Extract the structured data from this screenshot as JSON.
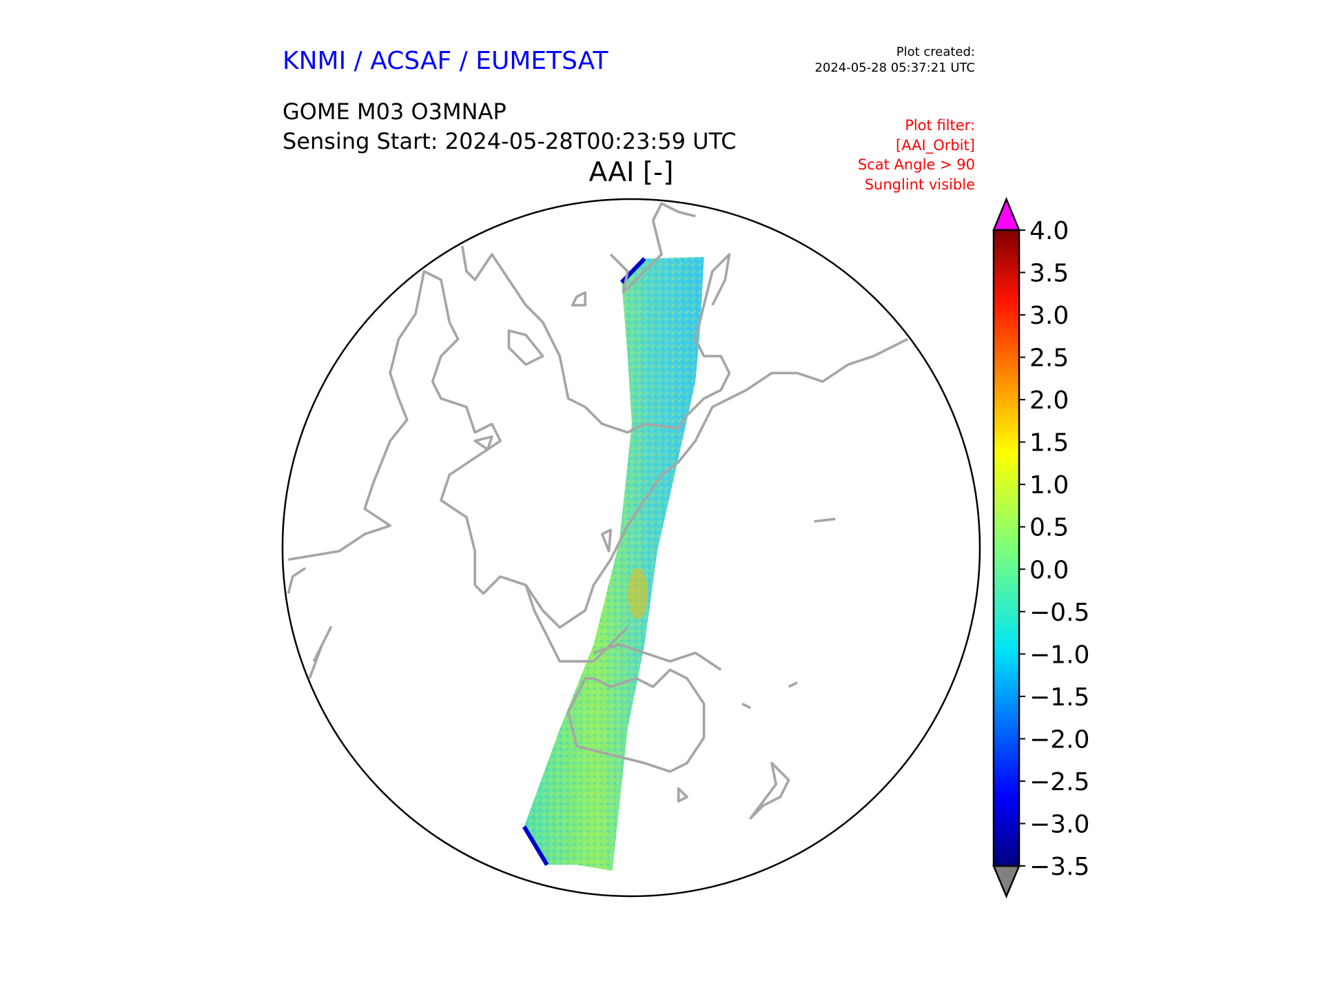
{
  "header": {
    "organisation": "KNMI / ACSAF / EUMETSAT",
    "plot_created_label": "Plot created:",
    "plot_created_value": "2024-05-28 05:37:21 UTC",
    "product": "GOME M03 O3MNAP",
    "sensing_start": "Sensing Start: 2024-05-28T00:23:59 UTC",
    "variable": "AAI [-]",
    "filter_lines": [
      "Plot filter:",
      "[AAI_Orbit]",
      "Scat Angle > 90",
      "Sunglint visible"
    ]
  },
  "colors": {
    "org": "#0000ff",
    "filter": "#ff0000",
    "coast": "#a6a6a6",
    "over": "#ff00ff",
    "under": "#808080"
  },
  "colorbar": {
    "min": -3.5,
    "max": 4.0,
    "colormap": "jet",
    "extend": "both",
    "tick_labels": [
      "4.0",
      "3.5",
      "3.0",
      "2.5",
      "2.0",
      "1.5",
      "1.0",
      "0.5",
      "0.0",
      "−0.5",
      "−1.0",
      "−1.5",
      "−2.0",
      "−2.5",
      "−3.0",
      "−3.5"
    ],
    "ticks": [
      4.0,
      3.5,
      3.0,
      2.5,
      2.0,
      1.5,
      1.0,
      0.5,
      0.0,
      -0.5,
      -1.0,
      -1.5,
      -2.0,
      -2.5,
      -3.0,
      -3.5
    ]
  }
}
